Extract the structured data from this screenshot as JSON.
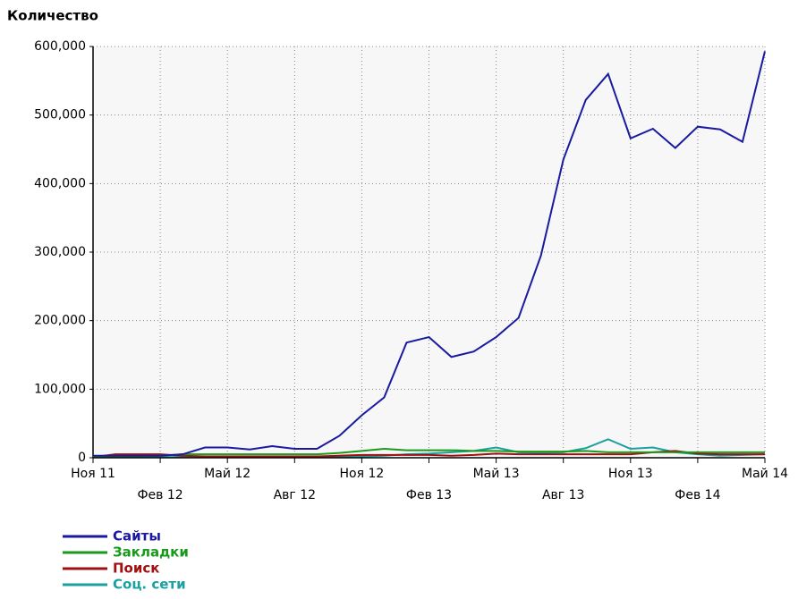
{
  "chart_data": {
    "type": "line",
    "title": "Количество",
    "categories": [
      "Ноя 11",
      null,
      null,
      "Фев 12",
      null,
      null,
      "Май 12",
      null,
      null,
      "Авг 12",
      null,
      null,
      "Ноя 12",
      null,
      null,
      "Фев 13",
      null,
      null,
      "Май 13",
      null,
      null,
      "Авг 13",
      null,
      null,
      "Ноя 13",
      null,
      null,
      "Фев 14",
      null,
      null,
      "Май 14"
    ],
    "ylim": [
      0,
      600000
    ],
    "yticks": [
      0,
      {
        "value": 100000,
        "label": "100,000"
      },
      {
        "value": 200000,
        "label": "200,000"
      },
      {
        "value": 300000,
        "label": "300,000"
      },
      {
        "value": 400000,
        "label": "400,000"
      },
      {
        "value": 500000,
        "label": "500,000"
      },
      {
        "value": 600000,
        "label": "600,000"
      }
    ],
    "grid": true,
    "legend": "bottom",
    "series": [
      {
        "name": "Сайты",
        "color": "#1a1aa0",
        "values": [
          3000,
          3000,
          3000,
          3000,
          5000,
          15000,
          15000,
          12000,
          17000,
          13000,
          13000,
          32000,
          62000,
          88000,
          168000,
          176000,
          147000,
          155000,
          176000,
          204000,
          295000,
          435000,
          522000,
          560000,
          466000,
          480000,
          452000,
          483000,
          479000,
          461000,
          593000
        ]
      },
      {
        "name": "Закладки",
        "color": "#1a9a1a",
        "values": [
          1000,
          1000,
          2000,
          3000,
          5000,
          5000,
          5000,
          5000,
          5000,
          5000,
          5000,
          7000,
          10000,
          13000,
          11000,
          11000,
          11000,
          10000,
          10000,
          9000,
          9000,
          9000,
          10000,
          8000,
          8000,
          8000,
          8000,
          8000,
          8000,
          8000,
          8000
        ]
      },
      {
        "name": "Поиск",
        "color": "#a01010",
        "values": [
          1000,
          5000,
          5000,
          5000,
          3000,
          2000,
          2000,
          2000,
          2000,
          2000,
          2000,
          3000,
          4000,
          4000,
          4000,
          4000,
          3000,
          4000,
          6000,
          5000,
          5000,
          5000,
          5000,
          5000,
          5000,
          8000,
          10000,
          6000,
          5000,
          5000,
          5000
        ]
      },
      {
        "name": "Соц. сети",
        "color": "#1aa0a0",
        "values": [
          1000,
          1000,
          1000,
          1000,
          1000,
          1000,
          1000,
          1000,
          1000,
          1000,
          1000,
          1000,
          2000,
          3000,
          5000,
          6000,
          8000,
          10000,
          15000,
          8000,
          7000,
          8000,
          14000,
          27000,
          13000,
          15000,
          8000,
          5000,
          3000,
          4000,
          5000
        ]
      }
    ]
  }
}
